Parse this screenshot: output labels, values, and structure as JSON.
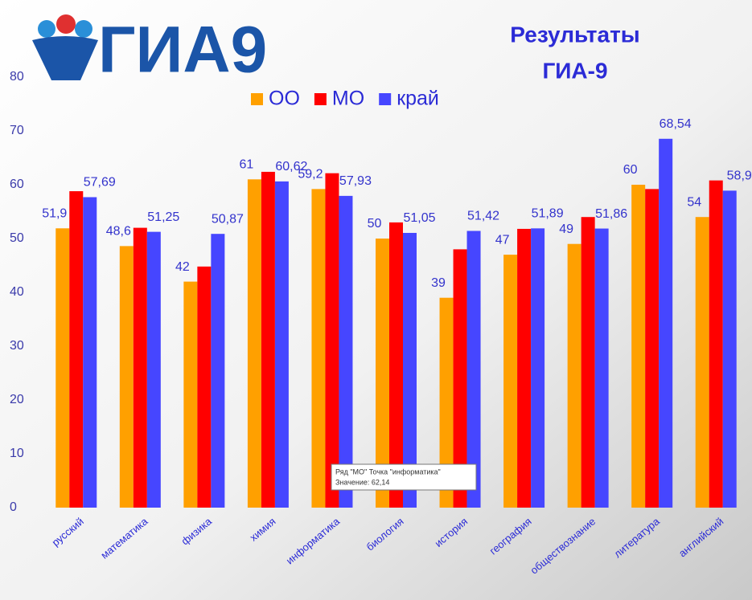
{
  "logo": "ГИА9",
  "chart_data": {
    "type": "bar",
    "title": [
      "Результаты",
      "ГИА-9"
    ],
    "categories": [
      "русский",
      "математика",
      "физика",
      "химия",
      "информатика",
      "биология",
      "история",
      "география",
      "обществознание",
      "литература",
      "английский"
    ],
    "series": [
      {
        "name": "ОО",
        "color": "#ffa000",
        "values": [
          51.9,
          48.6,
          42,
          61,
          59.2,
          50,
          39,
          47,
          49,
          60,
          54
        ],
        "value_labels": [
          "51,9",
          "48,6",
          "42",
          "61",
          "59,2",
          "50",
          "39",
          "47",
          "49",
          "60",
          "54"
        ]
      },
      {
        "name": "МО",
        "color": "#ff0000",
        "values": [
          58.8,
          52,
          44.8,
          62.4,
          62.14,
          53,
          48,
          51.8,
          54,
          59.2,
          60.8
        ]
      },
      {
        "name": "край",
        "color": "#4646ff",
        "values": [
          57.69,
          51.25,
          50.87,
          60.62,
          57.93,
          51.05,
          51.42,
          51.89,
          51.86,
          68.54,
          58.9
        ],
        "value_labels": [
          "57,69",
          "51,25",
          "50,87",
          "60,62",
          "57,93",
          "51,05",
          "51,42",
          "51,89",
          "51,86",
          "68,54",
          "58,9"
        ]
      }
    ],
    "ylim": [
      0,
      80
    ],
    "yticks": [
      0,
      10,
      20,
      30,
      40,
      50,
      60,
      70,
      80
    ],
    "grid": false,
    "tooltip": [
      "Ряд \"МО\" Точка \"информатика\"",
      "Значение: 62,14"
    ]
  }
}
